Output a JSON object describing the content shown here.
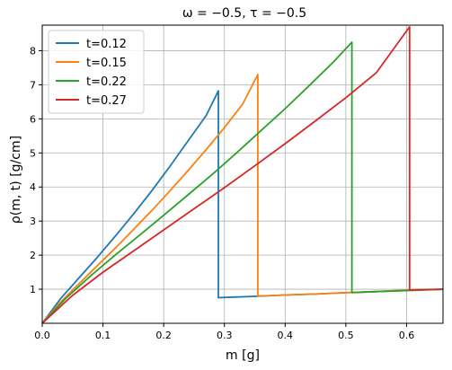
{
  "chart_data": {
    "type": "line",
    "title": "ω = −0.5,  τ = −0.5",
    "xlabel": "m [g]",
    "ylabel": "ρ(m, t)  [g/cm]",
    "xlim": [
      0.0,
      0.66
    ],
    "ylim": [
      0.0,
      8.75
    ],
    "xticks": [
      "0.0",
      "0.1",
      "0.2",
      "0.3",
      "0.4",
      "0.5",
      "0.6"
    ],
    "yticks": [
      "1",
      "2",
      "3",
      "4",
      "5",
      "6",
      "7",
      "8"
    ],
    "grid": true,
    "legend_position": "top-left",
    "series": [
      {
        "name": "t=0.12",
        "color": "#1f77b4",
        "x": [
          0.0,
          0.03,
          0.06,
          0.09,
          0.12,
          0.15,
          0.18,
          0.21,
          0.24,
          0.27,
          0.29,
          0.29,
          0.3,
          0.35,
          0.4,
          0.45,
          0.5,
          0.55,
          0.6,
          0.66
        ],
        "y": [
          0.0,
          0.72,
          1.32,
          1.92,
          2.55,
          3.2,
          3.88,
          4.6,
          5.35,
          6.1,
          6.82,
          0.75,
          0.76,
          0.79,
          0.83,
          0.86,
          0.9,
          0.93,
          0.97,
          1.0
        ]
      },
      {
        "name": "t=0.15",
        "color": "#ff7f0e",
        "x": [
          0.0,
          0.03,
          0.06,
          0.09,
          0.12,
          0.15,
          0.18,
          0.21,
          0.24,
          0.27,
          0.3,
          0.33,
          0.355,
          0.355,
          0.4,
          0.45,
          0.5,
          0.55,
          0.6,
          0.66
        ],
        "y": [
          0.0,
          0.62,
          1.15,
          1.68,
          2.2,
          2.75,
          3.3,
          3.88,
          4.48,
          5.1,
          5.74,
          6.43,
          7.3,
          0.8,
          0.83,
          0.86,
          0.9,
          0.93,
          0.97,
          1.0
        ]
      },
      {
        "name": "t=0.22",
        "color": "#2ca02c",
        "x": [
          0.0,
          0.04,
          0.08,
          0.12,
          0.16,
          0.2,
          0.24,
          0.28,
          0.32,
          0.36,
          0.4,
          0.44,
          0.48,
          0.51,
          0.51,
          0.55,
          0.6,
          0.66
        ],
        "y": [
          0.0,
          0.75,
          1.4,
          2.0,
          2.58,
          3.17,
          3.77,
          4.37,
          5.0,
          5.65,
          6.3,
          6.98,
          7.68,
          8.25,
          0.9,
          0.93,
          0.96,
          1.0
        ]
      },
      {
        "name": "t=0.27",
        "color": "#d62728",
        "x": [
          0.0,
          0.05,
          0.1,
          0.15,
          0.2,
          0.25,
          0.3,
          0.35,
          0.4,
          0.45,
          0.5,
          0.55,
          0.605,
          0.605,
          0.63,
          0.66
        ],
        "y": [
          0.0,
          0.82,
          1.5,
          2.12,
          2.74,
          3.36,
          3.98,
          4.62,
          5.27,
          5.94,
          6.62,
          7.35,
          8.7,
          0.98,
          0.99,
          1.0
        ]
      }
    ]
  }
}
